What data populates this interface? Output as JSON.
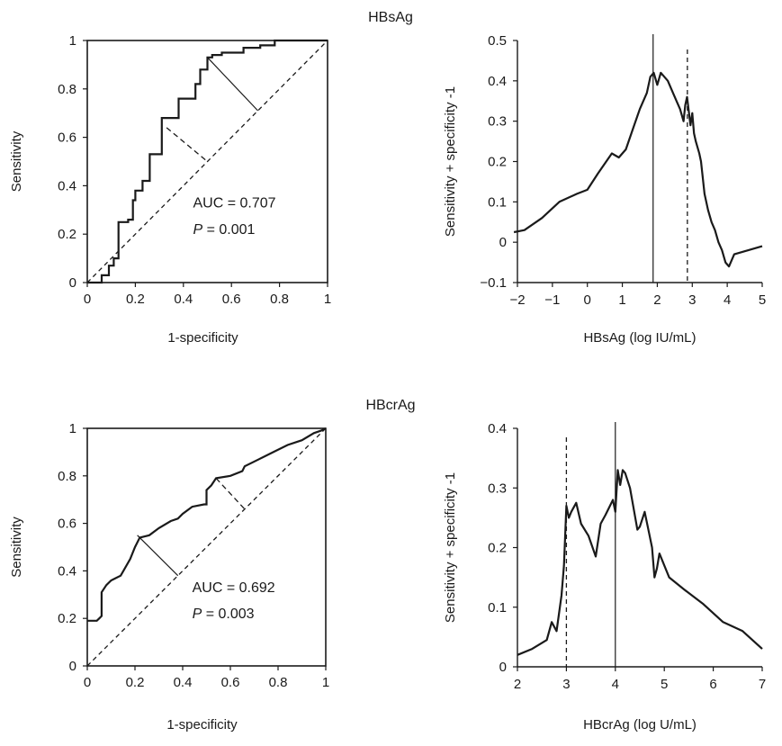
{
  "panels": [
    {
      "title": "HBsAg",
      "roc": {
        "type": "line",
        "xlabel": "1-specificity",
        "ylabel": "Sensitivity",
        "xlim": [
          0,
          1
        ],
        "ylim": [
          0,
          1
        ],
        "xticks": [
          "0",
          "0.2",
          "0.4",
          "0.6",
          "0.8",
          "1"
        ],
        "yticks": [
          "0",
          "0.2",
          "0.4",
          "0.6",
          "0.8",
          "1"
        ],
        "auc_text": "AUC = 0.707",
        "p_label": "P",
        "p_value": " = 0.001",
        "curve": [
          [
            0,
            0
          ],
          [
            0.06,
            0
          ],
          [
            0.06,
            0.03
          ],
          [
            0.09,
            0.03
          ],
          [
            0.09,
            0.07
          ],
          [
            0.11,
            0.07
          ],
          [
            0.11,
            0.1
          ],
          [
            0.13,
            0.1
          ],
          [
            0.13,
            0.25
          ],
          [
            0.17,
            0.25
          ],
          [
            0.17,
            0.26
          ],
          [
            0.19,
            0.26
          ],
          [
            0.19,
            0.34
          ],
          [
            0.2,
            0.34
          ],
          [
            0.2,
            0.38
          ],
          [
            0.23,
            0.38
          ],
          [
            0.23,
            0.42
          ],
          [
            0.26,
            0.42
          ],
          [
            0.26,
            0.53
          ],
          [
            0.31,
            0.53
          ],
          [
            0.31,
            0.68
          ],
          [
            0.38,
            0.68
          ],
          [
            0.38,
            0.76
          ],
          [
            0.45,
            0.76
          ],
          [
            0.45,
            0.82
          ],
          [
            0.47,
            0.82
          ],
          [
            0.47,
            0.88
          ],
          [
            0.5,
            0.88
          ],
          [
            0.5,
            0.93
          ],
          [
            0.52,
            0.93
          ],
          [
            0.52,
            0.94
          ],
          [
            0.56,
            0.94
          ],
          [
            0.56,
            0.95
          ],
          [
            0.65,
            0.95
          ],
          [
            0.65,
            0.97
          ],
          [
            0.72,
            0.97
          ],
          [
            0.72,
            0.98
          ],
          [
            0.78,
            0.98
          ],
          [
            0.78,
            1
          ],
          [
            1,
            1
          ]
        ],
        "reference_line": [
          [
            0,
            0
          ],
          [
            1,
            1
          ]
        ],
        "solid_segment": [
          [
            0.5,
            0.93
          ],
          [
            0.71,
            0.71
          ]
        ],
        "dashed_segment": [
          [
            0.33,
            0.64
          ],
          [
            0.5,
            0.5
          ]
        ]
      },
      "youden": {
        "type": "line",
        "xlabel": "HBsAg (log IU/mL)",
        "ylabel": "Sensitivity + specificity -1",
        "xlim": [
          -2,
          5
        ],
        "ylim": [
          -0.1,
          0.5
        ],
        "xticks": [
          "−2",
          "−1",
          "0",
          "1",
          "2",
          "3",
          "4",
          "5"
        ],
        "yticks": [
          "−0.1",
          "0",
          "0.1",
          "0.2",
          "0.3",
          "0.4",
          "0.5"
        ],
        "x": [
          -2.1,
          -1.8,
          -1.3,
          -0.8,
          -0.3,
          0,
          0.3,
          0.7,
          0.9,
          1.1,
          1.3,
          1.5,
          1.7,
          1.8,
          1.9,
          2.0,
          2.1,
          2.2,
          2.3,
          2.45,
          2.55,
          2.65,
          2.75,
          2.8,
          2.85,
          2.95,
          3.0,
          3.05,
          3.1,
          3.2,
          3.25,
          3.35,
          3.45,
          3.55,
          3.65,
          3.75,
          3.85,
          3.95,
          4.05,
          4.2,
          4.6,
          5.0
        ],
        "y": [
          0.025,
          0.03,
          0.06,
          0.1,
          0.12,
          0.13,
          0.17,
          0.22,
          0.21,
          0.23,
          0.28,
          0.33,
          0.37,
          0.41,
          0.42,
          0.39,
          0.42,
          0.41,
          0.4,
          0.37,
          0.35,
          0.33,
          0.3,
          0.34,
          0.36,
          0.29,
          0.32,
          0.27,
          0.25,
          0.22,
          0.2,
          0.12,
          0.08,
          0.05,
          0.03,
          0.0,
          -0.02,
          -0.05,
          -0.06,
          -0.03,
          -0.02,
          -0.01
        ],
        "vline_solid": 1.88,
        "vline_dashed": 2.86
      }
    },
    {
      "title": "HBcrAg",
      "roc": {
        "type": "line",
        "xlabel": "1-specificity",
        "ylabel": "Sensitivity",
        "xlim": [
          0,
          1
        ],
        "ylim": [
          0,
          1
        ],
        "xticks": [
          "0",
          "0.2",
          "0.4",
          "0.6",
          "0.8",
          "1"
        ],
        "yticks": [
          "0",
          "0.2",
          "0.4",
          "0.6",
          "0.8",
          "1"
        ],
        "auc_text": "AUC = 0.692",
        "p_label": "P",
        "p_value": " = 0.003",
        "curve": [
          [
            0,
            0.19
          ],
          [
            0.04,
            0.19
          ],
          [
            0.05,
            0.2
          ],
          [
            0.06,
            0.21
          ],
          [
            0.06,
            0.31
          ],
          [
            0.08,
            0.34
          ],
          [
            0.1,
            0.36
          ],
          [
            0.14,
            0.38
          ],
          [
            0.18,
            0.45
          ],
          [
            0.2,
            0.5
          ],
          [
            0.22,
            0.54
          ],
          [
            0.26,
            0.55
          ],
          [
            0.3,
            0.58
          ],
          [
            0.35,
            0.61
          ],
          [
            0.38,
            0.62
          ],
          [
            0.4,
            0.64
          ],
          [
            0.44,
            0.67
          ],
          [
            0.49,
            0.68
          ],
          [
            0.5,
            0.68
          ],
          [
            0.5,
            0.74
          ],
          [
            0.52,
            0.76
          ],
          [
            0.54,
            0.79
          ],
          [
            0.6,
            0.8
          ],
          [
            0.65,
            0.82
          ],
          [
            0.66,
            0.84
          ],
          [
            0.72,
            0.87
          ],
          [
            0.78,
            0.9
          ],
          [
            0.84,
            0.93
          ],
          [
            0.9,
            0.95
          ],
          [
            0.95,
            0.98
          ],
          [
            0.98,
            0.99
          ],
          [
            1,
            1
          ]
        ],
        "reference_line": [
          [
            0,
            0
          ],
          [
            1,
            1
          ]
        ],
        "solid_segment": [
          [
            0.21,
            0.55
          ],
          [
            0.38,
            0.38
          ]
        ],
        "dashed_segment": [
          [
            0.54,
            0.79
          ],
          [
            0.66,
            0.66
          ]
        ]
      },
      "youden": {
        "type": "line",
        "xlabel": "HBcrAg (log U/mL)",
        "ylabel": "Sensitivity + specificity -1",
        "xlim": [
          2,
          7
        ],
        "ylim": [
          0,
          0.4
        ],
        "xticks": [
          "2",
          "3",
          "4",
          "5",
          "6",
          "7"
        ],
        "yticks": [
          "0",
          "0.1",
          "0.2",
          "0.3",
          "0.4"
        ],
        "x": [
          2.0,
          2.3,
          2.6,
          2.7,
          2.8,
          2.9,
          2.95,
          3.0,
          3.05,
          3.1,
          3.2,
          3.3,
          3.45,
          3.6,
          3.7,
          3.8,
          3.95,
          4.0,
          4.05,
          4.1,
          4.15,
          4.2,
          4.3,
          4.45,
          4.5,
          4.6,
          4.7,
          4.75,
          4.8,
          4.85,
          4.9,
          5.1,
          5.4,
          5.8,
          6.2,
          6.6,
          7.0
        ],
        "y": [
          0.02,
          0.03,
          0.045,
          0.075,
          0.06,
          0.12,
          0.17,
          0.27,
          0.25,
          0.26,
          0.275,
          0.24,
          0.22,
          0.185,
          0.24,
          0.255,
          0.28,
          0.26,
          0.33,
          0.305,
          0.33,
          0.325,
          0.3,
          0.23,
          0.235,
          0.26,
          0.22,
          0.2,
          0.15,
          0.165,
          0.19,
          0.15,
          0.13,
          0.105,
          0.075,
          0.06,
          0.03
        ],
        "vline_solid": 4.0,
        "vline_dashed": 3.0
      }
    }
  ]
}
